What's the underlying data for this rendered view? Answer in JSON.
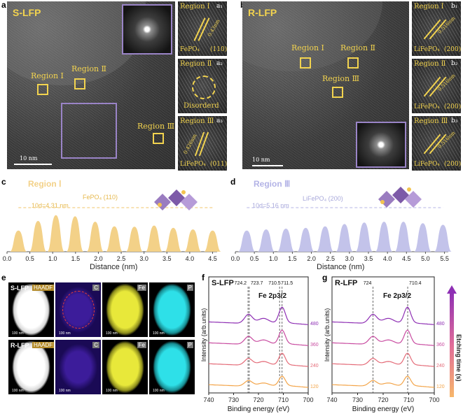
{
  "panel_letters": {
    "a": "a",
    "b": "b",
    "c": "c",
    "d": "d",
    "e": "e",
    "f": "f",
    "g": "g"
  },
  "panel_a": {
    "title": "S-LFP",
    "regions": [
      "Region Ⅰ",
      "Region Ⅱ",
      "Region Ⅲ"
    ],
    "scale": "10 nm",
    "insets": [
      {
        "title": "Region Ⅰ",
        "sub": "a₁",
        "measure": "0.43nm",
        "phase": "FePO₄",
        "hkl": "(110)"
      },
      {
        "title": "Region Ⅱ",
        "sub": "a₂",
        "note": "Disorderd"
      },
      {
        "title": "Region Ⅲ",
        "sub": "a₃",
        "measure": "0.426nm",
        "phase": "LiFePO₄",
        "hkl": "(011)"
      }
    ]
  },
  "panel_b": {
    "title": "R-LFP",
    "regions": [
      "Region Ⅰ",
      "Region Ⅱ",
      "Region Ⅲ"
    ],
    "scale": "10 nm",
    "insets": [
      {
        "title": "Region Ⅰ",
        "sub": "b₁",
        "measure": "0.516nm",
        "phase": "LiFePO₄",
        "hkl": "(200)"
      },
      {
        "title": "Region Ⅱ",
        "sub": "b₂",
        "measure": "0.516nm",
        "phase": "LiFePO₄",
        "hkl": "(200)"
      },
      {
        "title": "Region Ⅲ",
        "sub": "b₃",
        "measure": "0.516nm",
        "phase": "LiFePO₄",
        "hkl": "(200)"
      }
    ]
  },
  "chart_data": [
    {
      "type": "area",
      "panel": "c",
      "region": "Region Ⅰ",
      "annotation": "10d=4.31 nm",
      "phase": "FePO₄ (110)",
      "xlabel": "Distance (nm)",
      "xlim": [
        0.0,
        4.6
      ],
      "xticks": [
        "0.0",
        "0.5",
        "1.0",
        "1.5",
        "2.0",
        "2.5",
        "3.0",
        "3.5",
        "4.0",
        "4.5"
      ],
      "peaks_x": [
        0.25,
        0.68,
        1.07,
        1.49,
        1.93,
        2.35,
        2.79,
        3.22,
        3.64,
        4.07,
        4.5
      ],
      "peaks_height": [
        0.55,
        0.8,
        0.95,
        0.92,
        0.78,
        0.66,
        0.65,
        0.68,
        0.62,
        0.58,
        0.55
      ],
      "color": "#f3d188"
    },
    {
      "type": "area",
      "panel": "d",
      "region": "Region Ⅲ",
      "annotation": "10d=5.16 nm",
      "phase": "LiFePO₄ (200)",
      "xlabel": "Distance (nm)",
      "xlim": [
        0.0,
        5.6
      ],
      "xticks": [
        "0.0",
        "0.5",
        "1.0",
        "1.5",
        "2.0",
        "2.5",
        "3.0",
        "3.5",
        "4.0",
        "4.5",
        "5.0",
        "5.5"
      ],
      "peaks_x": [
        0.3,
        0.81,
        1.33,
        1.85,
        2.36,
        2.87,
        3.39,
        3.91,
        4.42,
        4.93,
        5.46
      ],
      "peaks_height": [
        0.55,
        0.58,
        0.6,
        0.62,
        0.66,
        0.72,
        0.76,
        0.78,
        0.78,
        0.74,
        0.7
      ],
      "color": "#c3c3ea"
    },
    {
      "type": "line",
      "panel": "f",
      "label": "S-LFP",
      "title": "Fe 2p3/2",
      "xlabel": "Binding energy (eV)",
      "ylabel": "Intensity (arb.units)",
      "xlim": [
        740,
        700
      ],
      "xticks": [
        "740",
        "730",
        "720",
        "710",
        "700"
      ],
      "peak_labels": [
        "724.2",
        "723.7",
        "710.5",
        "711.5"
      ],
      "etch_labels": [
        "480",
        "360",
        "240",
        "120"
      ],
      "colors": [
        "#8e2fb4",
        "#c84ba0",
        "#e46b78",
        "#f3a448"
      ]
    },
    {
      "type": "line",
      "panel": "g",
      "label": "R-LFP",
      "title": "Fe 2p3/2",
      "xlabel": "Binding energy (eV)",
      "ylabel": "Intensity (arb.units)",
      "xlim": [
        740,
        700
      ],
      "xticks": [
        "740",
        "730",
        "720",
        "710",
        "700"
      ],
      "peak_labels": [
        "724",
        "710.4"
      ],
      "etch_labels": [
        "480",
        "360",
        "240",
        "120"
      ],
      "colors": [
        "#8e2fb4",
        "#c84ba0",
        "#e46b78",
        "#f3a448"
      ],
      "side_label": "Etching time (s)"
    }
  ],
  "panel_e": {
    "rows": [
      {
        "sample": "S-LFP",
        "tiles": [
          "HAADF",
          "C",
          "Fe",
          "P"
        ]
      },
      {
        "sample": "R-LFP",
        "tiles": [
          "HAADF",
          "C",
          "Fe",
          "P"
        ]
      }
    ],
    "scale": "100 nm"
  },
  "colors": {
    "accent_yellow": "#f2d34f",
    "purple": "#9a84c7"
  }
}
